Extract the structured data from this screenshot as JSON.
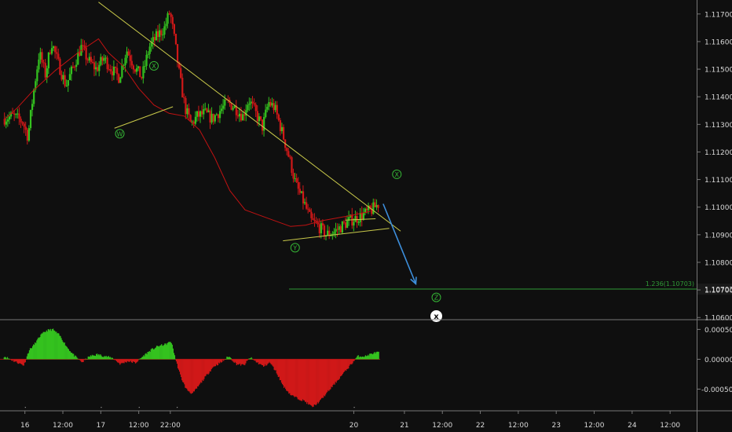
{
  "chart_data": {
    "type": "candlestick",
    "symbol_pair_decimals": 5,
    "price_panel": {
      "yaxis_ticks": [
        "1.11700",
        "1.11600",
        "1.11500",
        "1.11400",
        "1.11300",
        "1.11200",
        "1.11100",
        "1.11000",
        "1.10900",
        "1.10800",
        "1.10700",
        "1.10600"
      ],
      "ylim": [
        1.10595,
        1.11745
      ],
      "fib_level_label": "1.236(1.10703)",
      "fib_level_value": 1.10703,
      "wave_labels": [
        {
          "text": "W",
          "time": 17.25,
          "price": 1.11266
        },
        {
          "text": "X",
          "time": 17.7,
          "price": 1.11512
        },
        {
          "text": "Y",
          "time": 19.56,
          "price": 1.10853
        },
        {
          "text": "X",
          "time": 20.9,
          "price": 1.11119
        },
        {
          "text": "Z",
          "time": 21.42,
          "price": 1.10673
        },
        {
          "text": "x",
          "time": 21.42,
          "price": 1.10605
        }
      ],
      "trendlines": [
        {
          "from": [
            16.97,
            1.11743
          ],
          "to": [
            20.95,
            1.10913
          ]
        },
        {
          "from": [
            17.18,
            1.11286
          ],
          "to": [
            17.95,
            1.11364
          ]
        },
        {
          "from": [
            19.4,
            1.10878
          ],
          "to": [
            20.8,
            1.10923
          ]
        },
        {
          "from": [
            20.22,
            1.10953
          ],
          "to": [
            20.62,
            1.10958
          ]
        }
      ],
      "projection_arrow": {
        "from": [
          20.72,
          1.11012
        ],
        "to": [
          21.15,
          1.10722
        ]
      },
      "moving_average": [
        [
          15.72,
          1.11315
        ],
        [
          15.9,
          1.1136
        ],
        [
          16.1,
          1.1142
        ],
        [
          16.4,
          1.11495
        ],
        [
          16.7,
          1.1156
        ],
        [
          16.97,
          1.1161
        ],
        [
          17.1,
          1.1156
        ],
        [
          17.3,
          1.1151
        ],
        [
          17.5,
          1.1143
        ],
        [
          17.7,
          1.1137
        ],
        [
          17.9,
          1.1134
        ],
        [
          18.1,
          1.1133
        ],
        [
          18.3,
          1.1128
        ],
        [
          18.5,
          1.1118
        ],
        [
          18.7,
          1.1106
        ],
        [
          18.9,
          1.1099
        ],
        [
          19.1,
          1.1097
        ],
        [
          19.3,
          1.1095
        ],
        [
          19.5,
          1.1093
        ],
        [
          19.7,
          1.10935
        ],
        [
          19.9,
          1.1095
        ],
        [
          20.1,
          1.1096
        ],
        [
          20.3,
          1.1097
        ],
        [
          20.55,
          1.10985
        ]
      ],
      "price_path": [
        [
          15.72,
          1.1132
        ],
        [
          15.85,
          1.1133
        ],
        [
          15.98,
          1.1131
        ],
        [
          16.05,
          1.11255
        ],
        [
          16.12,
          1.1141
        ],
        [
          16.2,
          1.1156
        ],
        [
          16.28,
          1.1148
        ],
        [
          16.36,
          1.116
        ],
        [
          16.45,
          1.1152
        ],
        [
          16.55,
          1.1144
        ],
        [
          16.65,
          1.1151
        ],
        [
          16.75,
          1.1158
        ],
        [
          16.85,
          1.1153
        ],
        [
          16.95,
          1.115
        ],
        [
          17.05,
          1.1154
        ],
        [
          17.15,
          1.115
        ],
        [
          17.25,
          1.1147
        ],
        [
          17.35,
          1.1157
        ],
        [
          17.45,
          1.1151
        ],
        [
          17.55,
          1.1147
        ],
        [
          17.65,
          1.1158
        ],
        [
          17.75,
          1.1162
        ],
        [
          17.85,
          1.1165
        ],
        [
          17.92,
          1.1171
        ],
        [
          17.99,
          1.1159
        ],
        [
          18.05,
          1.1147
        ],
        [
          18.12,
          1.1136
        ],
        [
          18.2,
          1.113
        ],
        [
          18.28,
          1.1133
        ],
        [
          18.38,
          1.1134
        ],
        [
          18.48,
          1.1132
        ],
        [
          18.58,
          1.1135
        ],
        [
          18.68,
          1.1138
        ],
        [
          18.78,
          1.1136
        ],
        [
          18.88,
          1.1133
        ],
        [
          18.96,
          1.1139
        ],
        [
          19.05,
          1.1134
        ],
        [
          19.14,
          1.1129
        ],
        [
          19.22,
          1.1138
        ],
        [
          19.3,
          1.1136
        ],
        [
          19.4,
          1.1127
        ],
        [
          19.5,
          1.1117
        ],
        [
          19.58,
          1.1108
        ],
        [
          19.68,
          1.1102
        ],
        [
          19.78,
          1.1095
        ],
        [
          19.88,
          1.1093
        ],
        [
          19.98,
          1.109
        ],
        [
          20.08,
          1.1091
        ],
        [
          20.18,
          1.1093
        ],
        [
          20.28,
          1.1095
        ],
        [
          20.38,
          1.1096
        ],
        [
          20.48,
          1.10975
        ],
        [
          20.58,
          1.1099
        ],
        [
          20.66,
          1.1101
        ]
      ]
    },
    "oscillator_panel": {
      "yaxis_ticks": [
        "0.00050",
        "0.00000",
        "-0.00050"
      ],
      "ylim": [
        -0.00085,
        0.00065
      ],
      "histogram": [
        [
          15.72,
          5e-05
        ],
        [
          15.85,
          -3e-05
        ],
        [
          15.98,
          -0.0001
        ],
        [
          16.05,
          0.00015
        ],
        [
          16.12,
          0.00025
        ],
        [
          16.2,
          0.0004
        ],
        [
          16.28,
          0.00048
        ],
        [
          16.36,
          0.0005
        ],
        [
          16.45,
          0.0004
        ],
        [
          16.55,
          0.0002
        ],
        [
          16.65,
          5e-05
        ],
        [
          16.75,
          -5e-05
        ],
        [
          16.85,
          5e-05
        ],
        [
          16.95,
          8e-05
        ],
        [
          17.05,
          5e-05
        ],
        [
          17.15,
          2e-05
        ],
        [
          17.25,
          -8e-05
        ],
        [
          17.35,
          -3e-05
        ],
        [
          17.45,
          -6e-05
        ],
        [
          17.55,
          5e-05
        ],
        [
          17.65,
          0.00015
        ],
        [
          17.75,
          0.00022
        ],
        [
          17.85,
          0.00025
        ],
        [
          17.92,
          0.0003
        ],
        [
          17.99,
          -5e-05
        ],
        [
          18.05,
          -0.0003
        ],
        [
          18.12,
          -0.0005
        ],
        [
          18.2,
          -0.00058
        ],
        [
          18.28,
          -0.00045
        ],
        [
          18.38,
          -0.00028
        ],
        [
          18.48,
          -0.00012
        ],
        [
          18.58,
          -5e-05
        ],
        [
          18.68,
          5e-05
        ],
        [
          18.78,
          -8e-05
        ],
        [
          18.88,
          -0.0001
        ],
        [
          18.96,
          3e-05
        ],
        [
          19.05,
          -5e-05
        ],
        [
          19.14,
          -0.00012
        ],
        [
          19.22,
          -5e-05
        ],
        [
          19.3,
          -0.0002
        ],
        [
          19.4,
          -0.00045
        ],
        [
          19.5,
          -0.0006
        ],
        [
          19.58,
          -0.00065
        ],
        [
          19.68,
          -0.0007
        ],
        [
          19.78,
          -0.0008
        ],
        [
          19.88,
          -0.0007
        ],
        [
          19.98,
          -0.00055
        ],
        [
          20.08,
          -0.0004
        ],
        [
          20.18,
          -0.00025
        ],
        [
          20.28,
          -0.0001
        ],
        [
          20.38,
          5e-05
        ],
        [
          20.48,
          5e-05
        ],
        [
          20.58,
          0.0001
        ],
        [
          20.66,
          0.00012
        ]
      ]
    },
    "xaxis": {
      "ticks": [
        {
          "label": "16",
          "time": 16.0
        },
        {
          "label": "12:00",
          "time": 16.5
        },
        {
          "label": "17",
          "time": 17.0
        },
        {
          "label": "12:00",
          "time": 17.5
        },
        {
          "label": "22:00",
          "time": 17.916
        },
        {
          "label": "20",
          "time": 20.333
        },
        {
          "label": "21",
          "time": 21.0
        },
        {
          "label": "12:00",
          "time": 21.5
        },
        {
          "label": "22",
          "time": 22.0
        },
        {
          "label": "12:00",
          "time": 22.5
        },
        {
          "label": "23",
          "time": 23.0
        },
        {
          "label": "12:00",
          "time": 23.5
        },
        {
          "label": "24",
          "time": 24.0
        },
        {
          "label": "12:00",
          "time": 24.5
        }
      ],
      "xlim": [
        15.672,
        24.85
      ]
    },
    "colors": {
      "background": "#0f0f0f",
      "up": "#34c21f",
      "down": "#d01818",
      "ma": "#c01212",
      "trendline": "#c9c94a",
      "fib": "#2f9a36",
      "arrow": "#3d8fdc",
      "wave_label": "#35b535",
      "axis_text": "#d8d8d8",
      "separator": "#777777"
    }
  }
}
